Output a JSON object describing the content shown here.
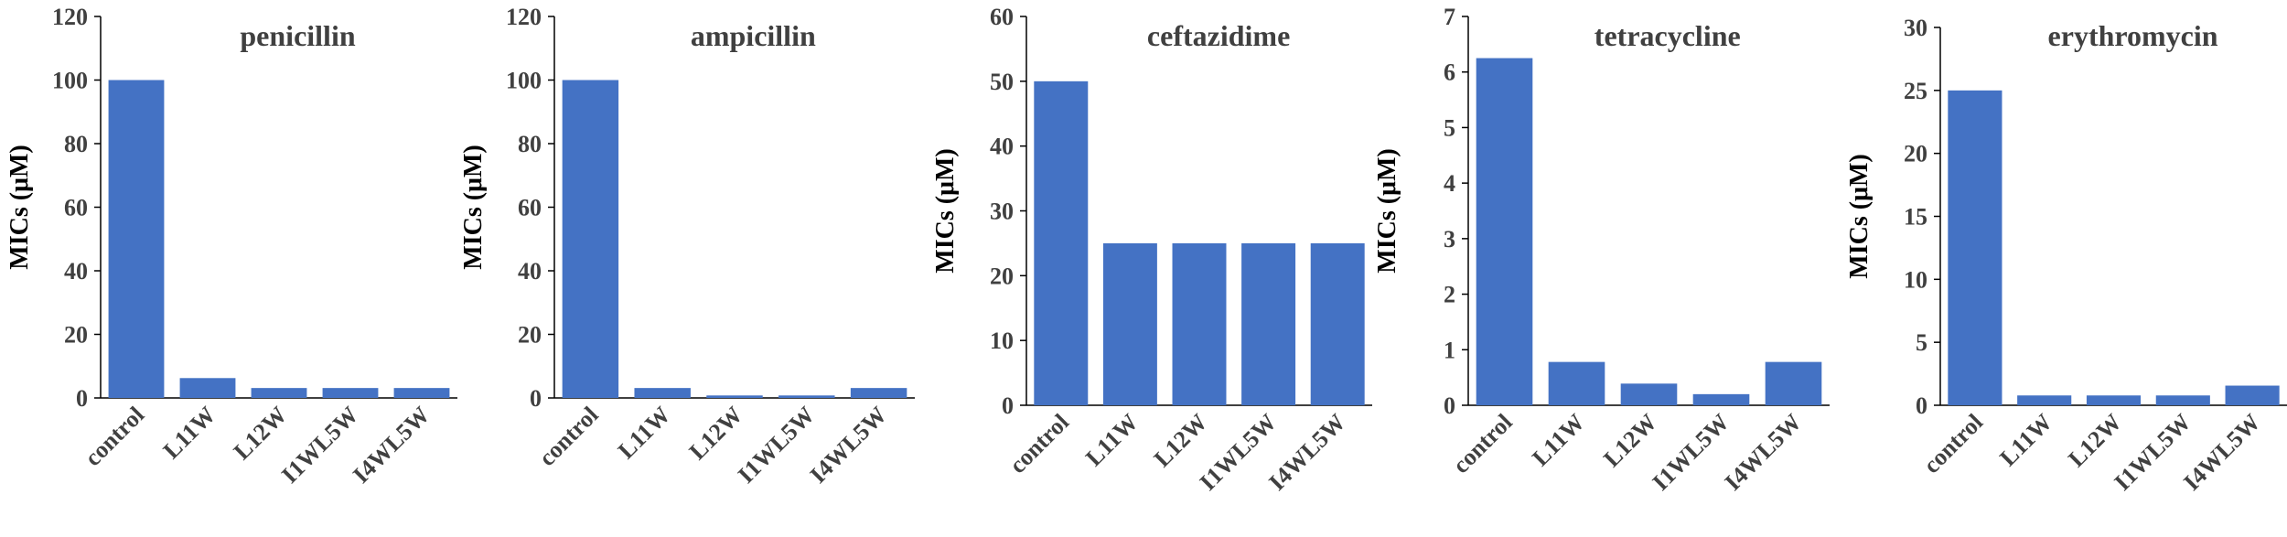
{
  "colors": {
    "bar": "#4472C4",
    "axis": "#000000",
    "text": "#404040"
  },
  "chart_data": [
    {
      "type": "bar",
      "title": "penicillin",
      "ylabel": "MICs (μM)",
      "xlabel": "",
      "categories": [
        "control",
        "L11W",
        "L12W",
        "I1WL5W",
        "I4WL5W"
      ],
      "values": [
        100,
        6.25,
        3.125,
        3.125,
        3.125
      ],
      "ylim": [
        0,
        120
      ],
      "yticks": [
        0,
        20,
        40,
        60,
        80,
        100,
        120
      ],
      "grid": false
    },
    {
      "type": "bar",
      "title": "ampicillin",
      "ylabel": "MICs (μM)",
      "xlabel": "",
      "categories": [
        "control",
        "L11W",
        "L12W",
        "I1WL5W",
        "I4WL5W"
      ],
      "values": [
        100,
        3.125,
        0.78,
        0.78,
        3.125
      ],
      "ylim": [
        0,
        120
      ],
      "yticks": [
        0,
        20,
        40,
        60,
        80,
        100,
        120
      ],
      "grid": false
    },
    {
      "type": "bar",
      "title": "ceftazidime",
      "ylabel": "MICs (μM)",
      "xlabel": "",
      "categories": [
        "control",
        "L11W",
        "L12W",
        "I1WL5W",
        "I4WL5W"
      ],
      "values": [
        50,
        25,
        25,
        25,
        25
      ],
      "ylim": [
        0,
        60
      ],
      "yticks": [
        0,
        10,
        20,
        30,
        40,
        50,
        60
      ],
      "grid": false
    },
    {
      "type": "bar",
      "title": "tetracycline",
      "ylabel": "MICs (μM)",
      "xlabel": "",
      "categories": [
        "control",
        "L11W",
        "L12W",
        "I1WL5W",
        "I4WL5W"
      ],
      "values": [
        6.25,
        0.78,
        0.39,
        0.2,
        0.78
      ],
      "ylim": [
        0,
        7
      ],
      "yticks": [
        0,
        1,
        2,
        3,
        4,
        5,
        6,
        7
      ],
      "grid": false
    },
    {
      "type": "bar",
      "title": "erythromycin",
      "ylabel": "MICs (μM)",
      "xlabel": "",
      "categories": [
        "control",
        "L11W",
        "L12W",
        "I1WL5W",
        "I4WL5W"
      ],
      "values": [
        25,
        0.78,
        0.78,
        0.78,
        1.56
      ],
      "ylim": [
        0,
        30
      ],
      "yticks": [
        0,
        5,
        10,
        15,
        20,
        25,
        30
      ],
      "grid": false
    }
  ]
}
